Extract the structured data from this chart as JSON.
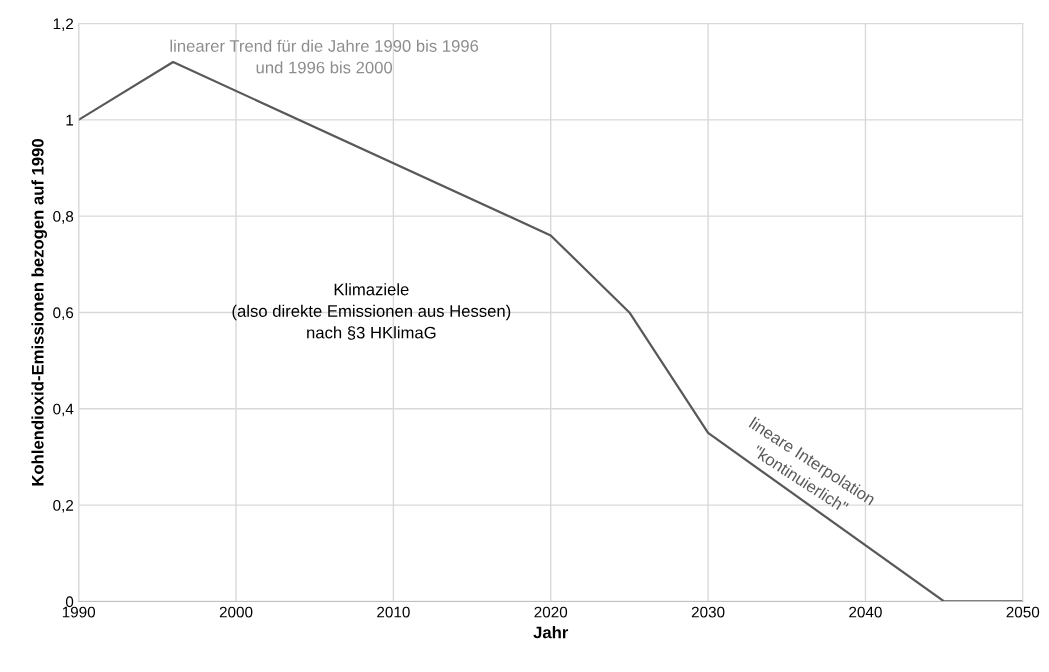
{
  "chart_data": {
    "type": "line",
    "xlabel": "Jahr",
    "ylabel": "Kohlendioxid-Emissionen bezogen auf 1990",
    "x": [
      1990,
      1996,
      2020,
      2025,
      2030,
      2045,
      2050
    ],
    "series": [
      {
        "color": "#595959",
        "values": [
          1.0,
          1.12,
          0.76,
          0.6,
          0.35,
          0,
          0
        ]
      }
    ],
    "xlim": [
      1990,
      2050
    ],
    "xticks": [
      1990,
      2000,
      2010,
      2020,
      2030,
      2040,
      2050
    ],
    "ylim": [
      0,
      1.2
    ],
    "yticks": [
      0,
      {
        "value": 0.2,
        "label": "0,2"
      },
      {
        "value": 0.4,
        "label": "0,4"
      },
      {
        "value": 0.6,
        "label": "0,6"
      },
      {
        "value": 0.8,
        "label": "0,8"
      },
      1,
      {
        "value": 1.2,
        "label": "1,2"
      }
    ],
    "grid": true,
    "marker": "none",
    "line_style": "solid",
    "annotations": [
      "linearer Trend für die Jahre 1990 bis 1996\nund 1996 bis 2000",
      "Klimaziele\n(also direkte Emissionen aus Hessen)\nnach §3 HKlimaG",
      "lineare Interpolation\n\"kontinuierlich\""
    ]
  }
}
